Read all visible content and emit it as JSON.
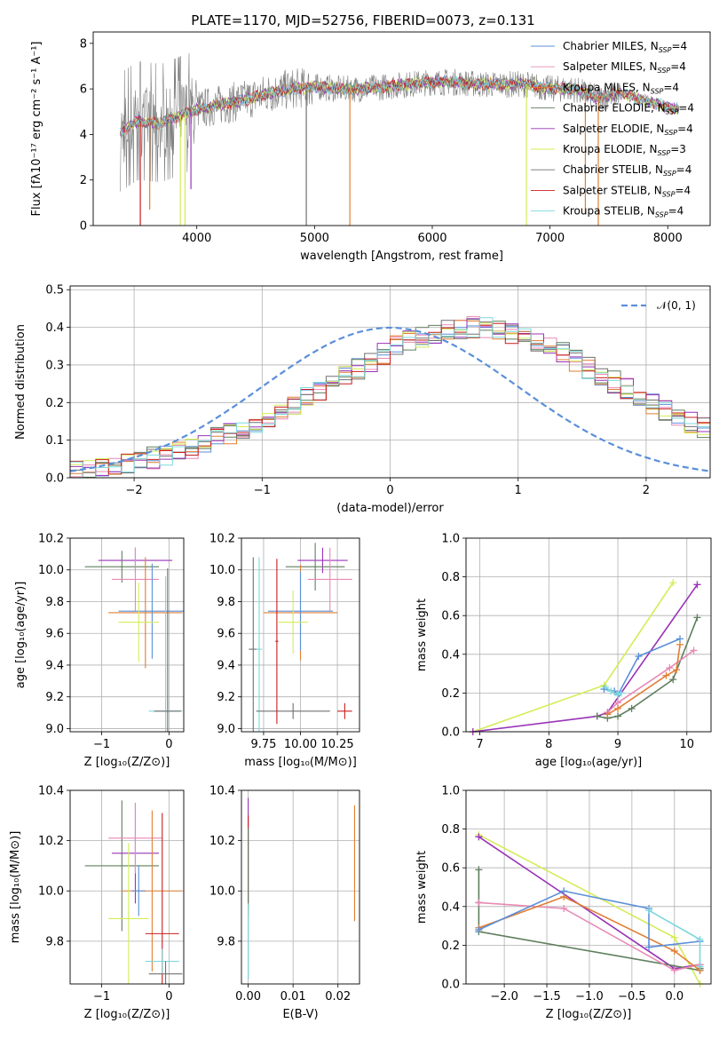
{
  "colors": {
    "chabrier_miles": "#5b8fd9",
    "salpeter_miles": "#e889b5",
    "kroupa_miles": "#e07f35",
    "chabrier_elodie": "#5f7f5f",
    "salpeter_elodie": "#9933b8",
    "kroupa_elodie": "#d4ec55",
    "chabrier_stelib": "#707070",
    "salpeter_stelib": "#c81e1e",
    "kroupa_stelib": "#7dd8dc",
    "grid": "#b0b0b0",
    "gaussian": "#5b8fd9"
  },
  "chart_data": [
    {
      "id": "spectrum",
      "type": "line",
      "title": "PLATE=1170, MJD=52756, FIBERID=0073, z=0.131",
      "xlabel": "wavelength [Angstrom, rest frame]",
      "ylabel": "Flux [fλ10⁻¹⁷ erg cm⁻² s⁻¹ A⁻¹]",
      "xlim": [
        3120,
        8360
      ],
      "ylim": [
        0,
        8.5
      ],
      "xticks": [
        4000,
        5000,
        6000,
        7000,
        8000
      ],
      "yticks": [
        0,
        2,
        4,
        6,
        8
      ],
      "grid": false,
      "legend_position": "top-right",
      "continuum": [
        [
          3350,
          4.1
        ],
        [
          3500,
          4.6
        ],
        [
          3700,
          4.5
        ],
        [
          3900,
          4.9
        ],
        [
          4000,
          5.1
        ],
        [
          4200,
          5.3
        ],
        [
          4400,
          5.5
        ],
        [
          4600,
          5.8
        ],
        [
          4800,
          6.0
        ],
        [
          5000,
          6.1
        ],
        [
          5200,
          6.0
        ],
        [
          5400,
          6.0
        ],
        [
          5600,
          6.1
        ],
        [
          5800,
          6.2
        ],
        [
          6000,
          6.3
        ],
        [
          6200,
          6.3
        ],
        [
          6400,
          6.2
        ],
        [
          6600,
          6.2
        ],
        [
          6800,
          6.2
        ],
        [
          7000,
          6.0
        ],
        [
          7200,
          6.0
        ],
        [
          7400,
          5.6
        ],
        [
          7600,
          5.8
        ],
        [
          7800,
          5.5
        ],
        [
          8000,
          5.2
        ],
        [
          8100,
          5.1
        ]
      ],
      "observed_range": [
        3350,
        7600
      ],
      "model_range": [
        3350,
        8100
      ],
      "drops": [
        [
          3520,
          0
        ],
        [
          3600,
          0.7
        ],
        [
          3860,
          0
        ],
        [
          3900,
          0
        ],
        [
          3950,
          1.6
        ],
        [
          4930,
          0
        ],
        [
          5300,
          0
        ],
        [
          6800,
          0
        ],
        [
          7300,
          0.5
        ],
        [
          7410,
          0
        ]
      ],
      "legend": [
        {
          "key": "chabrier_miles",
          "label": "Chabrier MILES, N",
          "sub": "SSP",
          "value": "=4"
        },
        {
          "key": "salpeter_miles",
          "label": "Salpeter MILES, N",
          "sub": "SSP",
          "value": "=4"
        },
        {
          "key": "kroupa_miles",
          "label": "Kroupa MILES, N",
          "sub": "SSP",
          "value": "=4"
        },
        {
          "key": "chabrier_elodie",
          "label": "Chabrier ELODIE, N",
          "sub": "SSP",
          "value": "=4"
        },
        {
          "key": "salpeter_elodie",
          "label": "Salpeter ELODIE, N",
          "sub": "SSP",
          "value": "=4"
        },
        {
          "key": "kroupa_elodie",
          "label": "Kroupa ELODIE, N",
          "sub": "SSP",
          "value": "=3"
        },
        {
          "key": "chabrier_stelib",
          "label": "Chabrier STELIB, N",
          "sub": "SSP",
          "value": "=4"
        },
        {
          "key": "salpeter_stelib",
          "label": "Salpeter STELIB, N",
          "sub": "SSP",
          "value": "=4"
        },
        {
          "key": "kroupa_stelib",
          "label": "Kroupa STELIB, N",
          "sub": "SSP",
          "value": "=4"
        }
      ]
    },
    {
      "id": "residuals",
      "type": "line",
      "xlabel": "(data-model)/error",
      "ylabel": "Normed distribution",
      "xlim": [
        -2.5,
        2.5
      ],
      "ylim": [
        0,
        0.51
      ],
      "xticks": [
        -2,
        -1,
        0,
        1,
        2
      ],
      "yticks": [
        0.0,
        0.1,
        0.2,
        0.3,
        0.4,
        0.5
      ],
      "grid": true,
      "legend_position": "top-right",
      "legend_label": "𝒩(0, 1)",
      "bin_width": 0.1,
      "bin_start": -2.5,
      "hist_base": [
        0.02,
        0.023,
        0.027,
        0.031,
        0.037,
        0.044,
        0.052,
        0.06,
        0.07,
        0.08,
        0.092,
        0.104,
        0.116,
        0.13,
        0.147,
        0.163,
        0.18,
        0.197,
        0.215,
        0.235,
        0.255,
        0.27,
        0.292,
        0.312,
        0.33,
        0.348,
        0.362,
        0.375,
        0.385,
        0.393,
        0.398,
        0.4,
        0.398,
        0.393,
        0.385,
        0.375,
        0.362,
        0.348,
        0.33,
        0.312,
        0.292,
        0.27,
        0.255,
        0.235,
        0.215,
        0.197,
        0.18,
        0.163,
        0.147,
        0.13
      ],
      "hist_base_tail": [
        0.116,
        0.104,
        0.092,
        0.08,
        0.07,
        0.06,
        0.052,
        0.044,
        0.037,
        0.031,
        0.027,
        0.023
      ]
    },
    {
      "id": "age_vs_Z",
      "type": "scatter",
      "xlabel": "Z [log₁₀(Z/Z⊙)]",
      "ylabel": "age  [log₁₀(age/yr)]",
      "xlim": [
        -1.47,
        0.22
      ],
      "ylim": [
        8.98,
        10.2
      ],
      "xticks": [
        -1,
        0
      ],
      "xticklabels": [
        "−1",
        "0"
      ],
      "yticks": [
        9.0,
        9.2,
        9.4,
        9.6,
        9.8,
        10.0,
        10.2
      ],
      "grid": true,
      "points": [
        {
          "key": "salpeter_elodie",
          "x": -0.5,
          "xerr": 0.55,
          "y": 10.06,
          "yerr": 0.08
        },
        {
          "key": "chabrier_elodie",
          "x": -0.7,
          "xerr": 0.55,
          "y": 10.02,
          "yerr": 0.1
        },
        {
          "key": "salpeter_miles",
          "x": -0.5,
          "xerr": 0.35,
          "y": 9.94,
          "yerr": 0.2
        },
        {
          "key": "kroupa_miles",
          "x": -0.35,
          "xerr": 0.55,
          "y": 9.73,
          "yerr": 0.35
        },
        {
          "key": "chabrier_miles",
          "x": -0.25,
          "xerr": 0.5,
          "y": 9.74,
          "yerr": 0.3
        },
        {
          "key": "kroupa_elodie",
          "x": -0.45,
          "xerr": 0.3,
          "y": 9.67,
          "yerr": 0.25
        },
        {
          "key": "kroupa_stelib",
          "x": -0.05,
          "xerr": 0.25,
          "y": 9.11,
          "yerr": 0.85
        },
        {
          "key": "chabrier_stelib",
          "x": -0.02,
          "xerr": 0.2,
          "y": 9.11,
          "yerr": 0.9
        }
      ]
    },
    {
      "id": "age_vs_mass",
      "type": "scatter",
      "xlabel": "mass [log₁₀(M/M⊙)]",
      "xlim": [
        9.6,
        10.4
      ],
      "ylim": [
        8.98,
        10.2
      ],
      "xticks": [
        9.75,
        10.0,
        10.25
      ],
      "xticklabels": [
        "9.75",
        "10.00",
        "10.25"
      ],
      "yticks": [
        9.0,
        9.2,
        9.4,
        9.6,
        9.8,
        10.0,
        10.2
      ],
      "grid": true,
      "points": [
        {
          "key": "salpeter_elodie",
          "x": 10.15,
          "xerr": 0.17,
          "y": 10.06,
          "yerr": 0.08
        },
        {
          "key": "chabrier_elodie",
          "x": 10.1,
          "xerr": 0.2,
          "y": 10.02,
          "yerr": 0.15
        },
        {
          "key": "salpeter_miles",
          "x": 10.2,
          "xerr": 0.15,
          "y": 9.94,
          "yerr": 0.2
        },
        {
          "key": "kroupa_miles",
          "x": 10.0,
          "xerr": 0.25,
          "y": 9.73,
          "yerr": 0.3
        },
        {
          "key": "chabrier_miles",
          "x": 10.0,
          "xerr": 0.22,
          "y": 9.74,
          "yerr": 0.25
        },
        {
          "key": "kroupa_elodie",
          "x": 9.95,
          "xerr": 0.1,
          "y": 9.67,
          "yerr": 0.2
        },
        {
          "key": "chabrier_stelib",
          "x": 9.68,
          "xerr": 0.03,
          "y": 9.5,
          "yerr": 0.58
        },
        {
          "key": "kroupa_stelib",
          "x": 9.72,
          "xerr": 0.02,
          "y": 9.5,
          "yerr": 0.58
        },
        {
          "key": "salpeter_stelib",
          "x": 10.3,
          "xerr": 0.05,
          "y": 9.11,
          "yerr": 0.05
        },
        {
          "key": "chabrier_stelib",
          "x": 9.95,
          "xerr": 0.25,
          "y": 9.11,
          "yerr": 0.05
        },
        {
          "key": "salpeter_stelib",
          "x": 9.84,
          "xerr": 0.01,
          "y": 9.55,
          "yerr": 0.52
        }
      ]
    },
    {
      "id": "weight_vs_age",
      "type": "line",
      "xlabel": "age  [log₁₀(age/yr)]",
      "ylabel": "mass weight",
      "xlim": [
        6.8,
        10.35
      ],
      "ylim": [
        0,
        1.0
      ],
      "xticks": [
        7,
        8,
        9,
        10
      ],
      "yticks": [
        0.0,
        0.2,
        0.4,
        0.6,
        0.8,
        1.0
      ],
      "grid": true,
      "series": [
        {
          "key": "kroupa_elodie",
          "x": [
            6.9,
            8.8,
            9.8
          ],
          "y": [
            0.0,
            0.24,
            0.77
          ]
        },
        {
          "key": "salpeter_elodie",
          "x": [
            6.9,
            8.7,
            8.85,
            10.15
          ],
          "y": [
            0.0,
            0.08,
            0.1,
            0.76
          ]
        },
        {
          "key": "chabrier_elodie",
          "x": [
            8.7,
            8.85,
            9.0,
            9.2,
            9.8,
            10.15
          ],
          "y": [
            0.08,
            0.07,
            0.08,
            0.12,
            0.27,
            0.59
          ]
        },
        {
          "key": "salpeter_miles",
          "x": [
            8.85,
            9.0,
            9.75,
            10.1
          ],
          "y": [
            0.1,
            0.15,
            0.33,
            0.42
          ]
        },
        {
          "key": "kroupa_miles",
          "x": [
            8.85,
            9.0,
            9.7,
            9.85,
            9.9
          ],
          "y": [
            0.09,
            0.12,
            0.29,
            0.32,
            0.45
          ]
        },
        {
          "key": "chabrier_miles",
          "x": [
            8.8,
            8.95,
            9.0,
            9.3,
            9.9
          ],
          "y": [
            0.22,
            0.21,
            0.19,
            0.39,
            0.48
          ]
        },
        {
          "key": "kroupa_stelib",
          "x": [
            8.82,
            8.9,
            9.0,
            9.05
          ],
          "y": [
            0.23,
            0.21,
            0.19,
            0.2
          ]
        }
      ]
    },
    {
      "id": "mass_vs_Z",
      "type": "scatter",
      "xlabel": "Z [log₁₀(Z/Z⊙)]",
      "ylabel": "mass [log₁₀(M/M⊙)]",
      "xlim": [
        -1.47,
        0.22
      ],
      "ylim": [
        9.63,
        10.4
      ],
      "xticks": [
        -1,
        0
      ],
      "xticklabels": [
        "−1",
        "0"
      ],
      "yticks": [
        9.8,
        10.0,
        10.2,
        10.4
      ],
      "grid": true,
      "points": [
        {
          "key": "chabrier_elodie",
          "x": -0.7,
          "xerr": 0.55,
          "y": 10.1,
          "yerr": 0.26
        },
        {
          "key": "salpeter_elodie",
          "x": -0.5,
          "xerr": 0.35,
          "y": 10.15,
          "yerr": 0.2
        },
        {
          "key": "salpeter_miles",
          "x": -0.5,
          "xerr": 0.4,
          "y": 10.21,
          "yerr": 0.14
        },
        {
          "key": "kroupa_miles",
          "x": -0.25,
          "xerr": 0.45,
          "y": 10.0,
          "yerr": 0.32
        },
        {
          "key": "chabrier_miles",
          "x": -0.45,
          "xerr": 0.1,
          "y": 10.0,
          "yerr": 0.1
        },
        {
          "key": "kroupa_elodie",
          "x": -0.6,
          "xerr": 0.3,
          "y": 9.89,
          "yerr": 0.3
        },
        {
          "key": "salpeter_stelib",
          "x": -0.1,
          "xerr": 0.25,
          "y": 9.83,
          "yerr": 0.48
        },
        {
          "key": "kroupa_stelib",
          "x": -0.1,
          "xerr": 0.25,
          "y": 9.72,
          "yerr": 0.05
        },
        {
          "key": "chabrier_stelib",
          "x": -0.05,
          "xerr": 0.25,
          "y": 9.67,
          "yerr": 0.05
        }
      ]
    },
    {
      "id": "mass_vs_ebv",
      "type": "scatter",
      "xlabel": "E(B-V)",
      "xlim": [
        -0.0015,
        0.0248
      ],
      "ylim": [
        9.63,
        10.4
      ],
      "xticks": [
        0.0,
        0.01,
        0.02
      ],
      "xticklabels": [
        "0.00",
        "0.01",
        "0.02"
      ],
      "yticks": [
        9.8,
        10.0,
        10.2,
        10.4
      ],
      "grid": true,
      "points": [
        {
          "key": "salpeter_elodie",
          "x": 0.0,
          "xerr": 0,
          "y": 10.15,
          "yerr": 0.22
        },
        {
          "key": "salpeter_stelib",
          "x": 0.0,
          "xerr": 0,
          "y": 10.1,
          "yerr": 0.2
        },
        {
          "key": "chabrier_elodie",
          "x": 0.0,
          "xerr": 0,
          "y": 9.95,
          "yerr": 0.3
        },
        {
          "key": "kroupa_stelib",
          "x": 0.0,
          "xerr": 0,
          "y": 9.8,
          "yerr": 0.15
        },
        {
          "key": "kroupa_miles",
          "x": 0.0237,
          "xerr": 0,
          "y": 10.11,
          "yerr": 0.23
        }
      ]
    },
    {
      "id": "weight_vs_Z",
      "type": "line",
      "xlabel": "Z [log₁₀(Z/Z⊙)]",
      "ylabel": "mass weight",
      "xlim": [
        -2.45,
        0.43
      ],
      "ylim": [
        0,
        1.0
      ],
      "xticks": [
        -2.0,
        -1.5,
        -1.0,
        -0.5,
        0.0
      ],
      "xticklabels": [
        "−2.0",
        "−1.5",
        "−1.0",
        "−0.5",
        "0.0"
      ],
      "yticks": [
        0.0,
        0.2,
        0.4,
        0.6,
        0.8,
        1.0
      ],
      "grid": true,
      "series": [
        {
          "key": "kroupa_elodie",
          "x": [
            -2.3,
            0.0,
            0.3
          ],
          "y": [
            0.77,
            0.24,
            0.0
          ]
        },
        {
          "key": "salpeter_elodie",
          "x": [
            -2.3,
            0.0,
            0.3,
            0.3
          ],
          "y": [
            0.76,
            0.08,
            0.1,
            0.08
          ]
        },
        {
          "key": "chabrier_elodie",
          "x": [
            -2.3,
            -2.3,
            -2.3,
            0.3,
            0.3
          ],
          "y": [
            0.59,
            0.42,
            0.27,
            0.07,
            0.08
          ]
        },
        {
          "key": "salpeter_miles",
          "x": [
            -2.3,
            -1.3,
            0.0,
            0.3
          ],
          "y": [
            0.42,
            0.39,
            0.07,
            0.1
          ]
        },
        {
          "key": "kroupa_miles",
          "x": [
            -2.3,
            -1.3,
            0.0,
            0.3
          ],
          "y": [
            0.29,
            0.45,
            0.17,
            0.07
          ]
        },
        {
          "key": "chabrier_miles",
          "x": [
            -2.3,
            -1.3,
            -0.3,
            -0.3,
            0.3
          ],
          "y": [
            0.28,
            0.48,
            0.39,
            0.19,
            0.22
          ]
        },
        {
          "key": "kroupa_stelib",
          "x": [
            -0.3,
            0.3,
            0.3
          ],
          "y": [
            0.38,
            0.23,
            0.09
          ]
        }
      ]
    }
  ]
}
